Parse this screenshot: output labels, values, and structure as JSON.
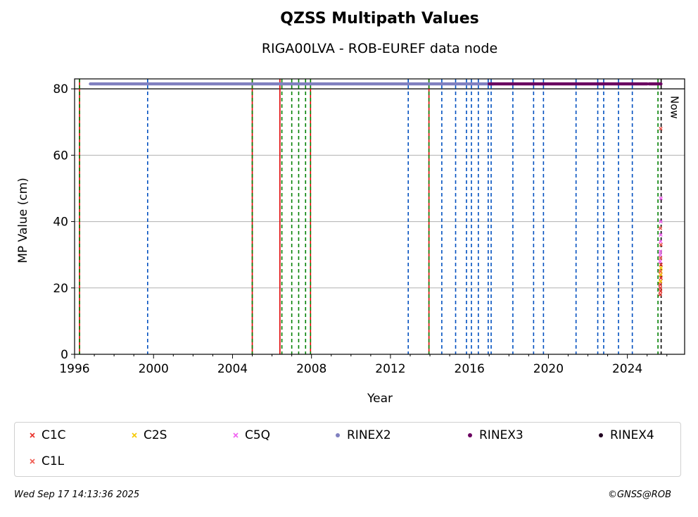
{
  "chart_data": {
    "type": "scatter",
    "title": "QZSS Multipath Values",
    "subtitle": "RIGA00LVA - ROB-EUREF data node",
    "xlabel": "Year",
    "ylabel": "MP Value (cm)",
    "xlim": [
      1996.0,
      2026.9
    ],
    "ylim": [
      0,
      83
    ],
    "xticks": [
      1996,
      2000,
      2004,
      2008,
      2012,
      2016,
      2020,
      2024
    ],
    "yticks": [
      0,
      20,
      40,
      60,
      80
    ],
    "grid": "y",
    "now_label": "Now",
    "legend_position": "bottom",
    "legend": [
      {
        "name": "C1C",
        "color": "#e8302a",
        "marker": "x"
      },
      {
        "name": "C2S",
        "color": "#f5c800",
        "marker": "x"
      },
      {
        "name": "C5Q",
        "color": "#f060f0",
        "marker": "x"
      },
      {
        "name": "RINEX2",
        "color": "#8080c0",
        "marker": "o"
      },
      {
        "name": "RINEX3",
        "color": "#6a0060",
        "marker": "o"
      },
      {
        "name": "RINEX4",
        "color": "#200020",
        "marker": "o"
      },
      {
        "name": "C1L",
        "color": "#f05a50",
        "marker": "x"
      }
    ],
    "rinex_availability": [
      {
        "name": "RINEX2",
        "y": 81.5,
        "x_start": 1996.8,
        "x_end": 2017.2
      },
      {
        "name": "RINEX3",
        "y": 81.5,
        "x_start": 2017.0,
        "x_end": 2025.0
      },
      {
        "name": "RINEX3",
        "y": 81.5,
        "x_start": 2025.1,
        "x_end": 2025.7
      }
    ],
    "series": [
      {
        "name": "C1C",
        "x": [
          2025.66,
          2025.67,
          2025.68,
          2025.69,
          2025.7,
          2025.66,
          2025.68,
          2025.7
        ],
        "y": [
          18,
          20,
          22,
          24,
          27,
          21,
          19,
          23
        ]
      },
      {
        "name": "C2S",
        "x": [
          2025.67,
          2025.68,
          2025.69,
          2025.7
        ],
        "y": [
          22,
          24,
          25,
          26
        ]
      },
      {
        "name": "C5Q",
        "x": [
          2025.66,
          2025.67,
          2025.68,
          2025.69,
          2025.7,
          2025.67,
          2025.69
        ],
        "y": [
          28,
          31,
          34,
          40,
          47,
          30,
          36
        ]
      },
      {
        "name": "C1L",
        "x": [
          2025.66,
          2025.68,
          2025.7,
          2025.67,
          2025.69
        ],
        "y": [
          25,
          29,
          33,
          38,
          68
        ]
      }
    ],
    "vlines": [
      {
        "x": 1996.25,
        "style": "solid",
        "color": "#e00000"
      },
      {
        "x": 1996.25,
        "style": "dashed",
        "color": "#008000"
      },
      {
        "x": 1999.7,
        "style": "dashed",
        "color": "#0050c0"
      },
      {
        "x": 2005.0,
        "style": "solid",
        "color": "#e00000"
      },
      {
        "x": 2005.0,
        "style": "dashed",
        "color": "#008000"
      },
      {
        "x": 2006.4,
        "style": "solid",
        "color": "#e00000"
      },
      {
        "x": 2006.5,
        "style": "dashed",
        "color": "#008000"
      },
      {
        "x": 2007.0,
        "style": "dashed",
        "color": "#008000"
      },
      {
        "x": 2007.35,
        "style": "dashed",
        "color": "#008000"
      },
      {
        "x": 2007.7,
        "style": "dashed",
        "color": "#008000"
      },
      {
        "x": 2007.95,
        "style": "solid",
        "color": "#e00000"
      },
      {
        "x": 2007.95,
        "style": "dashed",
        "color": "#008000"
      },
      {
        "x": 2012.9,
        "style": "dashed",
        "color": "#0050c0"
      },
      {
        "x": 2013.95,
        "style": "solid",
        "color": "#e00000"
      },
      {
        "x": 2013.95,
        "style": "dashed",
        "color": "#008000"
      },
      {
        "x": 2014.6,
        "style": "dashed",
        "color": "#0050c0"
      },
      {
        "x": 2015.3,
        "style": "dashed",
        "color": "#0050c0"
      },
      {
        "x": 2015.85,
        "style": "dashed",
        "color": "#0050c0"
      },
      {
        "x": 2016.1,
        "style": "dashed",
        "color": "#0050c0"
      },
      {
        "x": 2016.45,
        "style": "dashed",
        "color": "#0050c0"
      },
      {
        "x": 2016.95,
        "style": "dashed",
        "color": "#0050c0"
      },
      {
        "x": 2017.1,
        "style": "dashed",
        "color": "#0050c0"
      },
      {
        "x": 2018.2,
        "style": "dashed",
        "color": "#0050c0"
      },
      {
        "x": 2019.25,
        "style": "dashed",
        "color": "#0050c0"
      },
      {
        "x": 2019.75,
        "style": "dashed",
        "color": "#0050c0"
      },
      {
        "x": 2021.4,
        "style": "dashed",
        "color": "#0050c0"
      },
      {
        "x": 2022.5,
        "style": "dashed",
        "color": "#0050c0"
      },
      {
        "x": 2022.8,
        "style": "dashed",
        "color": "#0050c0"
      },
      {
        "x": 2023.55,
        "style": "dashed",
        "color": "#0050c0"
      },
      {
        "x": 2024.25,
        "style": "dashed",
        "color": "#0050c0"
      },
      {
        "x": 2025.55,
        "style": "dashed",
        "color": "#008000"
      },
      {
        "x": 2025.71,
        "style": "dashed",
        "color": "#000000"
      }
    ]
  },
  "footer": {
    "timestamp": "Wed Sep 17 14:13:36 2025",
    "credit": "©GNSS@ROB"
  }
}
